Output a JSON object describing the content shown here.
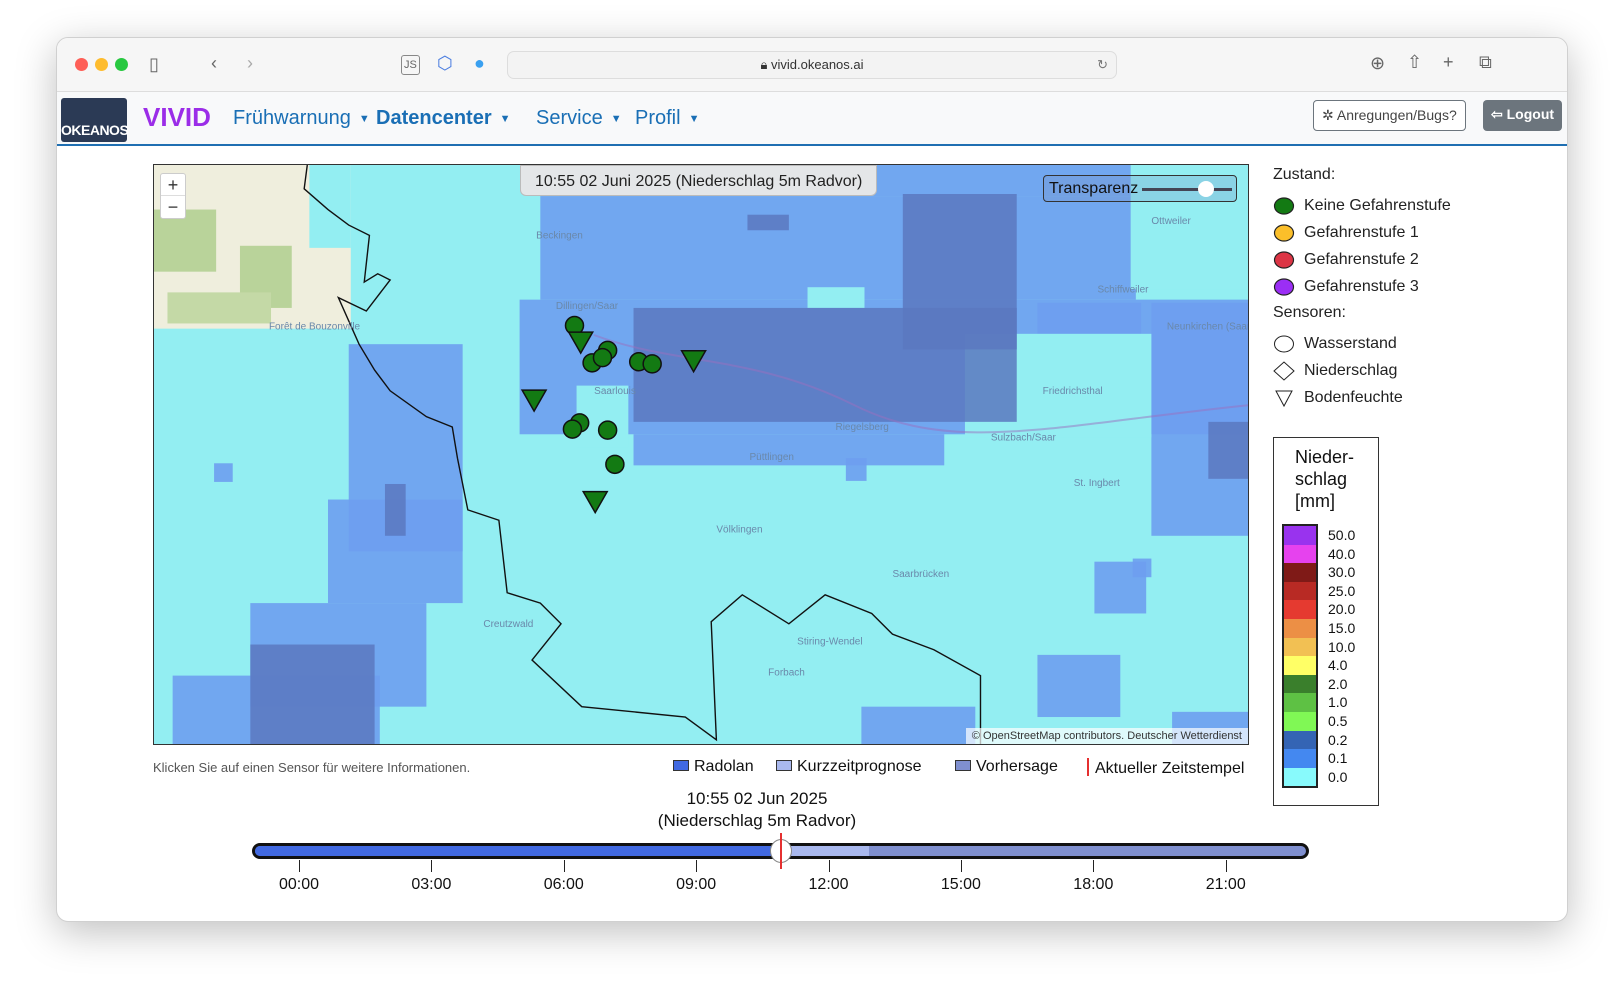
{
  "browser": {
    "url": "vivid.okeanos.ai"
  },
  "nav": {
    "logo_text": "OKEANOS",
    "brand": "VIVID",
    "menu": [
      {
        "label": "Frühwarnung",
        "bold": false
      },
      {
        "label": "Datencenter",
        "bold": true
      },
      {
        "label": "Service",
        "bold": false
      },
      {
        "label": "Profil",
        "bold": false
      }
    ],
    "feedback_label": "Anregungen/Bugs?",
    "logout_label": "Logout"
  },
  "map": {
    "timestamp": "10:55 02 Juni 2025 (Niederschlag 5m Radvor)",
    "transparency_label": "Transparenz",
    "transparency_value": 0.8,
    "zoom_in": "+",
    "zoom_out": "−",
    "attribution": "© OpenStreetMap contributors. Deutscher Wetterdienst",
    "places": [
      "Beckingen",
      "Dillingen/Saar",
      "Saarlouis",
      "Ottweiler",
      "Schiffweiler",
      "Neunkirchen (Saar)",
      "Friedrichsthal",
      "Riegelsberg",
      "Püttlingen",
      "Sulzbach/Saar",
      "St. Ingbert",
      "Völklingen",
      "Saarbrücken",
      "Creutzwald",
      "Stiring-Wendel",
      "Forbach",
      "Forêt de Bouzonville"
    ],
    "sensors": [
      {
        "type": "Wasserstand",
        "state": "Keine Gefahrenstufe",
        "count": 10
      },
      {
        "type": "Bodenfeuchte",
        "state": "Keine Gefahrenstufe",
        "count": 4
      }
    ]
  },
  "hint": "Klicken Sie auf einen Sensor für weitere Informationen.",
  "timeline_legend": [
    {
      "label": "Radolan",
      "color": "#4169e1"
    },
    {
      "label": "Kurzzeitprognose",
      "color": "#a9b8ee"
    },
    {
      "label": "Vorhersage",
      "color": "#7f8fcf"
    },
    {
      "label": "Aktueller Zeitstempel",
      "color": "#e53030"
    }
  ],
  "legend": {
    "zustand_title": "Zustand:",
    "zustand": [
      {
        "label": "Keine Gefahrenstufe",
        "color": "#137a13"
      },
      {
        "label": "Gefahrenstufe 1",
        "color": "#fbbf2a"
      },
      {
        "label": "Gefahrenstufe 2",
        "color": "#dc3545"
      },
      {
        "label": "Gefahrenstufe 3",
        "color": "#9b2ef5"
      }
    ],
    "sensoren_title": "Sensoren:",
    "sensoren": [
      {
        "label": "Wasserstand",
        "shape": "circle"
      },
      {
        "label": "Niederschlag",
        "shape": "diamond"
      },
      {
        "label": "Bodenfeuchte",
        "shape": "triangle"
      }
    ]
  },
  "colorbar": {
    "title_lines": [
      "Nieder-",
      "schlag",
      "[mm]"
    ],
    "steps": [
      {
        "v": "50.0",
        "c": "#9933ee"
      },
      {
        "v": "40.0",
        "c": "#e642ee"
      },
      {
        "v": "30.0",
        "c": "#7f1a17"
      },
      {
        "v": "25.0",
        "c": "#b82a24"
      },
      {
        "v": "20.0",
        "c": "#e53a30"
      },
      {
        "v": "15.0",
        "c": "#ec8f45"
      },
      {
        "v": "10.0",
        "c": "#f2c053"
      },
      {
        "v": "4.0",
        "c": "#ffff66"
      },
      {
        "v": "2.0",
        "c": "#3a7f2c"
      },
      {
        "v": "1.0",
        "c": "#5ec144"
      },
      {
        "v": "0.5",
        "c": "#80f855"
      },
      {
        "v": "0.2",
        "c": "#3464b4"
      },
      {
        "v": "0.1",
        "c": "#4488f0"
      },
      {
        "v": "0.0",
        "c": "#88fafc"
      }
    ]
  },
  "timeline": {
    "label_line1": "10:55 02 Jun 2025",
    "label_line2": "(Niederschlag 5m Radvor)",
    "current_hour": 10.9167,
    "nowcast_end_hour": 12.9167,
    "ticks": [
      "00:00",
      "03:00",
      "06:00",
      "09:00",
      "12:00",
      "15:00",
      "18:00",
      "21:00"
    ]
  }
}
